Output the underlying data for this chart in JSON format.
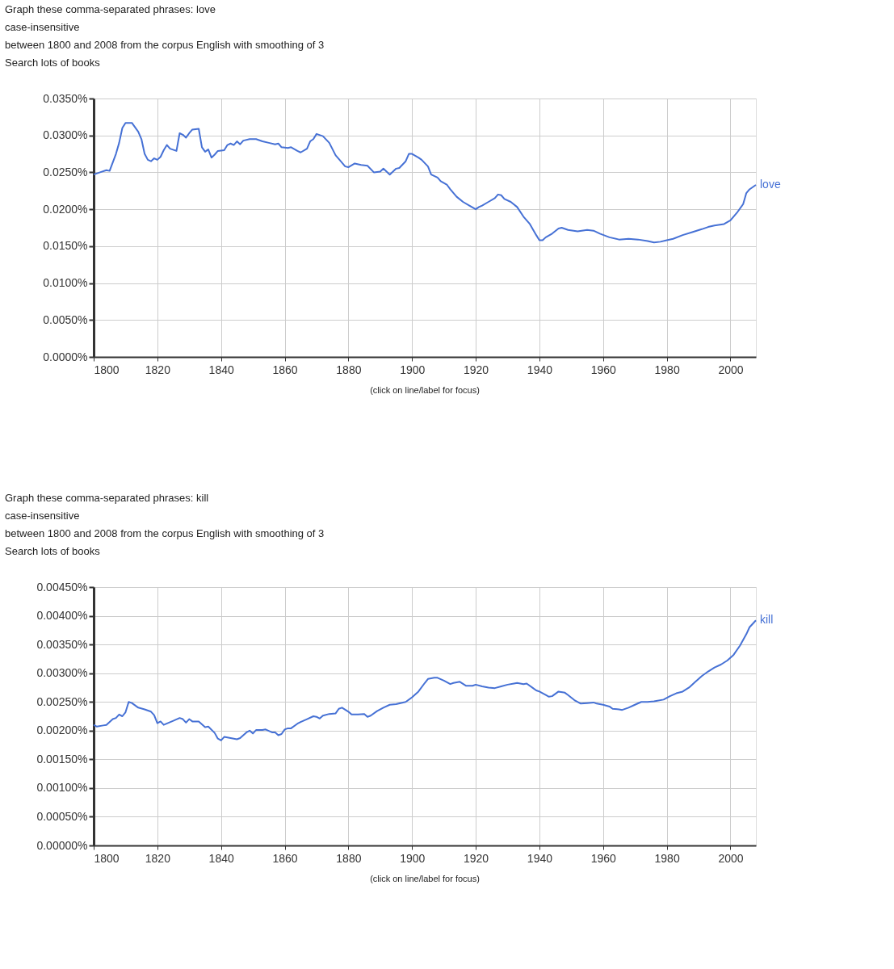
{
  "chart_data": [
    {
      "type": "line",
      "annotations": [
        "Graph these comma-separated phrases: love",
        "case-insensitive",
        "between 1800 and 2008 from the corpus English with smoothing of 3",
        "Search lots of books",
        "(click on line/label for focus)"
      ],
      "xlim": [
        1800,
        2008
      ],
      "xticks": [
        1800,
        1820,
        1840,
        1860,
        1880,
        1900,
        1920,
        1940,
        1960,
        1980,
        2000
      ],
      "ylim": [
        0,
        0.035
      ],
      "yticks": [
        {
          "value": 0,
          "label": "0.0000%"
        },
        {
          "value": 0.005,
          "label": "0.0050%"
        },
        {
          "value": 0.01,
          "label": "0.0100%"
        },
        {
          "value": 0.015,
          "label": "0.0150%"
        },
        {
          "value": 0.02,
          "label": "0.0200%"
        },
        {
          "value": 0.025,
          "label": "0.0250%"
        },
        {
          "value": 0.03,
          "label": "0.0300%"
        },
        {
          "value": 0.035,
          "label": "0.0350%"
        }
      ],
      "grid": true,
      "legend": false,
      "marker": "none",
      "line_style": "solid",
      "series": [
        {
          "name": "love",
          "color": "#4671d5",
          "x": [
            1800,
            1802,
            1804,
            1805,
            1807,
            1808,
            1809,
            1810,
            1812,
            1814,
            1815,
            1816,
            1817,
            1818,
            1819,
            1820,
            1821,
            1822,
            1823,
            1824,
            1826,
            1827,
            1828,
            1829,
            1830,
            1831,
            1833,
            1834,
            1835,
            1836,
            1837,
            1838,
            1839,
            1841,
            1842,
            1843,
            1844,
            1845,
            1846,
            1847,
            1849,
            1851,
            1853,
            1855,
            1857,
            1858,
            1859,
            1861,
            1862,
            1864,
            1865,
            1867,
            1868,
            1869,
            1870,
            1872,
            1874,
            1876,
            1877,
            1879,
            1880,
            1882,
            1884,
            1886,
            1888,
            1890,
            1891,
            1893,
            1895,
            1896,
            1898,
            1899,
            1900,
            1902,
            1903,
            1905,
            1906,
            1908,
            1909,
            1911,
            1912,
            1914,
            1916,
            1918,
            1920,
            1921,
            1922,
            1924,
            1926,
            1927,
            1928,
            1929,
            1931,
            1933,
            1935,
            1937,
            1939,
            1940,
            1941,
            1942,
            1944,
            1946,
            1947,
            1949,
            1952,
            1955,
            1957,
            1959,
            1962,
            1965,
            1968,
            1971,
            1974,
            1976,
            1978,
            1980,
            1982,
            1985,
            1988,
            1991,
            1993,
            1995,
            1998,
            2000,
            2002,
            2004,
            2005,
            2006,
            2008
          ],
          "values": [
            0.0247,
            0.025,
            0.0253,
            0.0252,
            0.0275,
            0.029,
            0.031,
            0.0317,
            0.0317,
            0.0305,
            0.0295,
            0.0275,
            0.0267,
            0.0265,
            0.0269,
            0.0267,
            0.0271,
            0.028,
            0.0287,
            0.0282,
            0.0279,
            0.0303,
            0.0301,
            0.0297,
            0.0303,
            0.0308,
            0.0309,
            0.0284,
            0.0278,
            0.0281,
            0.027,
            0.0274,
            0.0279,
            0.028,
            0.0287,
            0.0289,
            0.0287,
            0.0292,
            0.0288,
            0.0293,
            0.0295,
            0.0295,
            0.0292,
            0.029,
            0.0288,
            0.0289,
            0.0284,
            0.0283,
            0.0284,
            0.0279,
            0.0277,
            0.0282,
            0.0292,
            0.0295,
            0.0302,
            0.0299,
            0.029,
            0.0273,
            0.0268,
            0.0258,
            0.0257,
            0.0262,
            0.026,
            0.0259,
            0.025,
            0.0251,
            0.0255,
            0.0247,
            0.0255,
            0.0256,
            0.0265,
            0.0275,
            0.0275,
            0.027,
            0.0267,
            0.0258,
            0.0247,
            0.0243,
            0.0238,
            0.0233,
            0.0227,
            0.0217,
            0.021,
            0.0205,
            0.02,
            0.0203,
            0.0205,
            0.021,
            0.0215,
            0.022,
            0.0219,
            0.0214,
            0.021,
            0.0203,
            0.019,
            0.018,
            0.0165,
            0.0158,
            0.0158,
            0.0162,
            0.0167,
            0.0174,
            0.0175,
            0.0172,
            0.017,
            0.0172,
            0.0171,
            0.0167,
            0.0162,
            0.0159,
            0.016,
            0.0159,
            0.0157,
            0.0155,
            0.0156,
            0.0158,
            0.016,
            0.0165,
            0.0169,
            0.0173,
            0.0176,
            0.0178,
            0.018,
            0.0185,
            0.0195,
            0.0207,
            0.0222,
            0.0227,
            0.0233
          ]
        }
      ]
    },
    {
      "type": "line",
      "annotations": [
        "Graph these comma-separated phrases: kill",
        "case-insensitive",
        "between 1800 and 2008 from the corpus English with smoothing of 3",
        "Search lots of books",
        "(click on line/label for focus)"
      ],
      "xlim": [
        1800,
        2008
      ],
      "xticks": [
        1800,
        1820,
        1840,
        1860,
        1880,
        1900,
        1920,
        1940,
        1960,
        1980,
        2000
      ],
      "ylim": [
        0,
        0.0045
      ],
      "yticks": [
        {
          "value": 0,
          "label": "0.00000%"
        },
        {
          "value": 0.0005,
          "label": "0.00050%"
        },
        {
          "value": 0.001,
          "label": "0.00100%"
        },
        {
          "value": 0.0015,
          "label": "0.00150%"
        },
        {
          "value": 0.002,
          "label": "0.00200%"
        },
        {
          "value": 0.0025,
          "label": "0.00250%"
        },
        {
          "value": 0.003,
          "label": "0.00300%"
        },
        {
          "value": 0.0035,
          "label": "0.00350%"
        },
        {
          "value": 0.004,
          "label": "0.00400%"
        },
        {
          "value": 0.0045,
          "label": "0.00450%"
        }
      ],
      "grid": true,
      "legend": false,
      "marker": "none",
      "line_style": "solid",
      "series": [
        {
          "name": "kill",
          "color": "#4671d5",
          "x": [
            1800,
            1801,
            1803,
            1804,
            1806,
            1807,
            1808,
            1809,
            1810,
            1811,
            1812,
            1814,
            1816,
            1818,
            1819,
            1820,
            1821,
            1822,
            1825,
            1827,
            1828,
            1829,
            1830,
            1831,
            1833,
            1835,
            1836,
            1838,
            1839,
            1840,
            1841,
            1843,
            1845,
            1846,
            1848,
            1849,
            1850,
            1851,
            1853,
            1854,
            1856,
            1857,
            1858,
            1859,
            1860,
            1861,
            1862,
            1864,
            1865,
            1867,
            1869,
            1870,
            1871,
            1872,
            1874,
            1876,
            1877,
            1878,
            1880,
            1881,
            1883,
            1885,
            1886,
            1887,
            1889,
            1891,
            1893,
            1895,
            1898,
            1900,
            1902,
            1904,
            1905,
            1907,
            1908,
            1910,
            1912,
            1913,
            1915,
            1917,
            1919,
            1920,
            1922,
            1924,
            1926,
            1928,
            1930,
            1932,
            1933,
            1935,
            1936,
            1938,
            1939,
            1940,
            1942,
            1943,
            1944,
            1946,
            1948,
            1949,
            1951,
            1953,
            1955,
            1957,
            1958,
            1960,
            1962,
            1963,
            1965,
            1966,
            1968,
            1970,
            1972,
            1974,
            1976,
            1979,
            1981,
            1983,
            1985,
            1987,
            1989,
            1991,
            1993,
            1995,
            1997,
            1999,
            2001,
            2003,
            2005,
            2006,
            2008
          ],
          "values": [
            0.0021,
            0.00207,
            0.00209,
            0.0021,
            0.0022,
            0.00222,
            0.00228,
            0.00225,
            0.00232,
            0.0025,
            0.00248,
            0.0024,
            0.00237,
            0.00233,
            0.00227,
            0.00213,
            0.00216,
            0.0021,
            0.00217,
            0.00222,
            0.0022,
            0.00214,
            0.0022,
            0.00216,
            0.00216,
            0.00206,
            0.00207,
            0.00196,
            0.00186,
            0.00183,
            0.00189,
            0.00187,
            0.00185,
            0.00187,
            0.00197,
            0.002,
            0.00195,
            0.00201,
            0.00201,
            0.00202,
            0.00197,
            0.00197,
            0.00192,
            0.00194,
            0.00202,
            0.00204,
            0.00204,
            0.00212,
            0.00215,
            0.0022,
            0.00225,
            0.00224,
            0.00221,
            0.00226,
            0.00229,
            0.0023,
            0.00238,
            0.0024,
            0.00233,
            0.00228,
            0.00228,
            0.00229,
            0.00224,
            0.00226,
            0.00234,
            0.0024,
            0.00245,
            0.00246,
            0.0025,
            0.00258,
            0.00268,
            0.00283,
            0.0029,
            0.00292,
            0.00292,
            0.00287,
            0.00281,
            0.00283,
            0.00285,
            0.00278,
            0.00278,
            0.0028,
            0.00277,
            0.00275,
            0.00274,
            0.00277,
            0.0028,
            0.00282,
            0.00283,
            0.00281,
            0.00282,
            0.00274,
            0.0027,
            0.00268,
            0.00262,
            0.00259,
            0.0026,
            0.00268,
            0.00266,
            0.00262,
            0.00253,
            0.00247,
            0.00248,
            0.00249,
            0.00247,
            0.00245,
            0.00242,
            0.00238,
            0.00237,
            0.00236,
            0.0024,
            0.00245,
            0.0025,
            0.0025,
            0.00251,
            0.00254,
            0.0026,
            0.00265,
            0.00268,
            0.00275,
            0.00285,
            0.00295,
            0.00303,
            0.0031,
            0.00315,
            0.00322,
            0.00332,
            0.00348,
            0.00368,
            0.0038,
            0.00392
          ]
        }
      ]
    }
  ]
}
